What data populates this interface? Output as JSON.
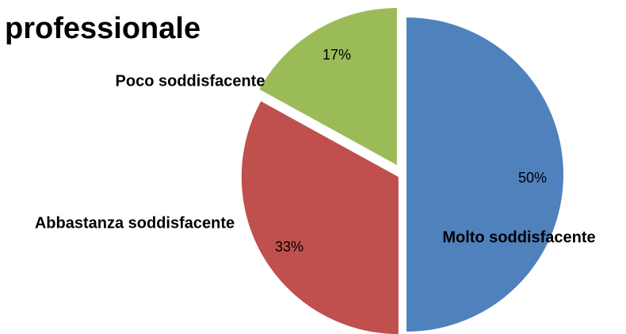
{
  "chart_data": {
    "type": "pie",
    "title": "professionale",
    "categories": [
      "Molto soddisfacente",
      "Abbastanza soddisfacente",
      "Poco soddisfacente"
    ],
    "values": [
      50,
      33,
      17
    ],
    "value_labels": [
      "50%",
      "33%",
      "17%"
    ],
    "colors": [
      "#4f81bd",
      "#c0504d",
      "#9bbb59"
    ]
  }
}
